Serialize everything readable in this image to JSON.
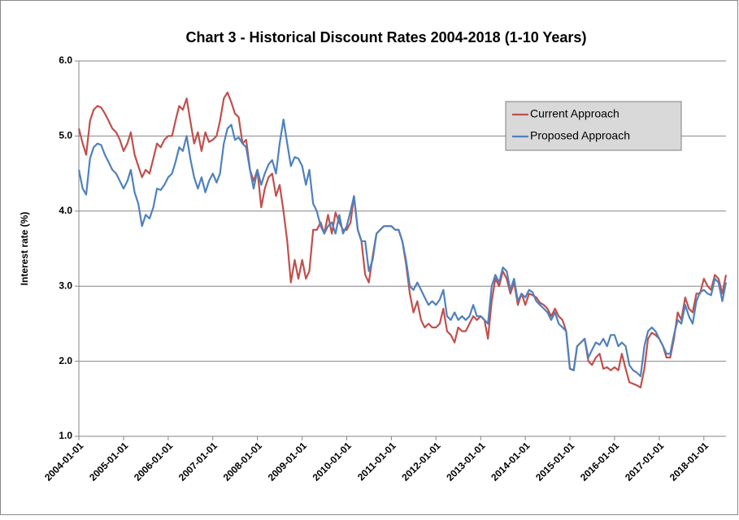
{
  "chart_data": {
    "type": "line",
    "title": "Chart 3 - Historical Discount Rates 2004-2018 (1-10 Years)",
    "y_label": "Interest rate (%)",
    "x": [
      "2004-01-01",
      "2004-02-01",
      "2004-03-01",
      "2004-04-01",
      "2004-05-01",
      "2004-06-01",
      "2004-07-01",
      "2004-08-01",
      "2004-09-01",
      "2004-10-01",
      "2004-11-01",
      "2004-12-01",
      "2005-01-01",
      "2005-02-01",
      "2005-03-01",
      "2005-04-01",
      "2005-05-01",
      "2005-06-01",
      "2005-07-01",
      "2005-08-01",
      "2005-09-01",
      "2005-10-01",
      "2005-11-01",
      "2005-12-01",
      "2006-01-01",
      "2006-02-01",
      "2006-03-01",
      "2006-04-01",
      "2006-05-01",
      "2006-06-01",
      "2006-07-01",
      "2006-08-01",
      "2006-09-01",
      "2006-10-01",
      "2006-11-01",
      "2006-12-01",
      "2007-01-01",
      "2007-02-01",
      "2007-03-01",
      "2007-04-01",
      "2007-05-01",
      "2007-06-01",
      "2007-07-01",
      "2007-08-01",
      "2007-09-01",
      "2007-10-01",
      "2007-11-01",
      "2007-12-01",
      "2008-01-01",
      "2008-02-01",
      "2008-03-01",
      "2008-04-01",
      "2008-05-01",
      "2008-06-01",
      "2008-07-01",
      "2008-08-01",
      "2008-09-01",
      "2008-10-01",
      "2008-11-01",
      "2008-12-01",
      "2009-01-01",
      "2009-02-01",
      "2009-03-01",
      "2009-04-01",
      "2009-05-01",
      "2009-06-01",
      "2009-07-01",
      "2009-08-01",
      "2009-09-01",
      "2009-10-01",
      "2009-11-01",
      "2009-12-01",
      "2010-01-01",
      "2010-02-01",
      "2010-03-01",
      "2010-04-01",
      "2010-05-01",
      "2010-06-01",
      "2010-07-01",
      "2010-08-01",
      "2010-09-01",
      "2010-10-01",
      "2010-11-01",
      "2010-12-01",
      "2011-01-01",
      "2011-02-01",
      "2011-03-01",
      "2011-04-01",
      "2011-05-01",
      "2011-06-01",
      "2011-07-01",
      "2011-08-01",
      "2011-09-01",
      "2011-10-01",
      "2011-11-01",
      "2011-12-01",
      "2012-01-01",
      "2012-02-01",
      "2012-03-01",
      "2012-04-01",
      "2012-05-01",
      "2012-06-01",
      "2012-07-01",
      "2012-08-01",
      "2012-09-01",
      "2012-10-01",
      "2012-11-01",
      "2012-12-01",
      "2013-01-01",
      "2013-02-01",
      "2013-03-01",
      "2013-04-01",
      "2013-05-01",
      "2013-06-01",
      "2013-07-01",
      "2013-08-01",
      "2013-09-01",
      "2013-10-01",
      "2013-11-01",
      "2013-12-01",
      "2014-01-01",
      "2014-02-01",
      "2014-03-01",
      "2014-04-01",
      "2014-05-01",
      "2014-06-01",
      "2014-07-01",
      "2014-08-01",
      "2014-09-01",
      "2014-10-01",
      "2014-11-01",
      "2014-12-01",
      "2015-01-01",
      "2015-02-01",
      "2015-03-01",
      "2015-04-01",
      "2015-05-01",
      "2015-06-01",
      "2015-07-01",
      "2015-08-01",
      "2015-09-01",
      "2015-10-01",
      "2015-11-01",
      "2015-12-01",
      "2016-01-01",
      "2016-02-01",
      "2016-03-01",
      "2016-04-01",
      "2016-05-01",
      "2016-06-01",
      "2016-07-01",
      "2016-08-01",
      "2016-09-01",
      "2016-10-01",
      "2016-11-01",
      "2016-12-01",
      "2017-01-01",
      "2017-02-01",
      "2017-03-01",
      "2017-04-01",
      "2017-05-01",
      "2017-06-01",
      "2017-07-01",
      "2017-08-01",
      "2017-09-01",
      "2017-10-01",
      "2017-11-01",
      "2017-12-01",
      "2018-01-01",
      "2018-02-01",
      "2018-03-01",
      "2018-04-01",
      "2018-05-01",
      "2018-06-01",
      "2018-07-01"
    ],
    "series": [
      {
        "name": "Current Approach",
        "color": "#c0504d",
        "values": [
          5.1,
          4.9,
          4.75,
          5.2,
          5.35,
          5.4,
          5.38,
          5.3,
          5.2,
          5.1,
          5.05,
          4.95,
          4.8,
          4.9,
          5.05,
          4.75,
          4.6,
          4.45,
          4.55,
          4.5,
          4.7,
          4.9,
          4.85,
          4.95,
          5.0,
          5.0,
          5.2,
          5.4,
          5.35,
          5.5,
          5.2,
          4.9,
          5.05,
          4.8,
          5.05,
          4.92,
          4.95,
          5.0,
          5.2,
          5.5,
          5.58,
          5.45,
          5.3,
          5.25,
          4.9,
          4.95,
          4.55,
          4.4,
          4.55,
          4.05,
          4.3,
          4.45,
          4.5,
          4.2,
          4.35,
          4.0,
          3.6,
          3.05,
          3.35,
          3.1,
          3.35,
          3.1,
          3.2,
          3.75,
          3.75,
          3.85,
          3.7,
          3.95,
          3.7,
          3.98,
          3.85,
          3.75,
          3.75,
          3.85,
          4.2,
          3.75,
          3.6,
          3.15,
          3.05,
          3.4,
          3.7,
          3.75,
          3.8,
          3.8,
          3.8,
          3.75,
          3.75,
          3.6,
          3.3,
          2.9,
          2.65,
          2.8,
          2.55,
          2.45,
          2.5,
          2.45,
          2.45,
          2.5,
          2.7,
          2.4,
          2.35,
          2.25,
          2.45,
          2.4,
          2.4,
          2.5,
          2.6,
          2.55,
          2.6,
          2.55,
          2.3,
          2.8,
          3.1,
          3.0,
          3.2,
          3.1,
          2.9,
          3.05,
          2.75,
          2.9,
          2.75,
          2.9,
          2.88,
          2.85,
          2.78,
          2.75,
          2.7,
          2.6,
          2.7,
          2.6,
          2.55,
          2.4,
          1.9,
          1.88,
          2.2,
          2.25,
          2.3,
          2.0,
          1.95,
          2.05,
          2.1,
          1.9,
          1.92,
          1.88,
          1.92,
          1.88,
          2.1,
          1.9,
          1.72,
          1.7,
          1.68,
          1.65,
          1.9,
          2.3,
          2.38,
          2.35,
          2.3,
          2.2,
          2.05,
          2.05,
          2.3,
          2.65,
          2.55,
          2.85,
          2.7,
          2.65,
          2.9,
          2.9,
          3.1,
          3.0,
          2.95,
          3.15,
          3.1,
          2.9,
          3.15
        ]
      },
      {
        "name": "Proposed Approach",
        "color": "#4f81bd",
        "values": [
          4.55,
          4.3,
          4.22,
          4.7,
          4.85,
          4.9,
          4.88,
          4.75,
          4.65,
          4.55,
          4.5,
          4.4,
          4.3,
          4.4,
          4.55,
          4.25,
          4.1,
          3.8,
          3.95,
          3.9,
          4.05,
          4.3,
          4.28,
          4.35,
          4.45,
          4.5,
          4.65,
          4.85,
          4.8,
          5.0,
          4.7,
          4.45,
          4.3,
          4.45,
          4.25,
          4.4,
          4.5,
          4.38,
          4.5,
          4.9,
          5.1,
          5.15,
          4.95,
          4.98,
          4.9,
          4.85,
          4.55,
          4.3,
          4.55,
          4.35,
          4.5,
          4.62,
          4.68,
          4.5,
          4.9,
          5.22,
          4.9,
          4.6,
          4.72,
          4.7,
          4.6,
          4.35,
          4.55,
          4.1,
          4.0,
          3.8,
          3.7,
          3.8,
          3.85,
          3.7,
          3.95,
          3.7,
          3.8,
          4.0,
          4.2,
          3.75,
          3.6,
          3.6,
          3.2,
          3.35,
          3.7,
          3.75,
          3.8,
          3.8,
          3.8,
          3.75,
          3.75,
          3.6,
          3.35,
          3.0,
          2.95,
          3.05,
          2.95,
          2.85,
          2.75,
          2.8,
          2.75,
          2.82,
          2.95,
          2.6,
          2.55,
          2.65,
          2.55,
          2.6,
          2.55,
          2.6,
          2.75,
          2.6,
          2.6,
          2.55,
          2.5,
          3.0,
          3.15,
          3.05,
          3.25,
          3.2,
          2.95,
          3.1,
          2.8,
          2.9,
          2.85,
          2.95,
          2.92,
          2.8,
          2.75,
          2.7,
          2.65,
          2.55,
          2.65,
          2.5,
          2.45,
          2.4,
          1.9,
          1.88,
          2.2,
          2.25,
          2.3,
          2.05,
          2.15,
          2.25,
          2.22,
          2.3,
          2.2,
          2.35,
          2.35,
          2.2,
          2.25,
          2.2,
          1.95,
          1.88,
          1.85,
          1.8,
          2.2,
          2.4,
          2.45,
          2.4,
          2.3,
          2.2,
          2.1,
          2.1,
          2.35,
          2.55,
          2.5,
          2.75,
          2.6,
          2.5,
          2.8,
          2.92,
          2.95,
          2.9,
          2.88,
          3.1,
          3.05,
          2.8,
          3.05
        ]
      }
    ],
    "xlim": [
      "2004-01-01",
      "2018-07-01"
    ],
    "xticks": [
      "2004-01-01",
      "2005-01-01",
      "2006-01-01",
      "2007-01-01",
      "2008-01-01",
      "2009-01-01",
      "2010-01-01",
      "2011-01-01",
      "2012-01-01",
      "2013-01-01",
      "2014-01-01",
      "2015-01-01",
      "2016-01-01",
      "2017-01-01",
      "2018-01-01"
    ],
    "ylim": [
      1,
      6
    ],
    "yticks": [
      {
        "value": 1,
        "label": "1.0"
      },
      {
        "value": 2,
        "label": "2.0"
      },
      {
        "value": 3,
        "label": "3.0"
      },
      {
        "value": 4,
        "label": "4.0"
      },
      {
        "value": 5,
        "label": "5.0"
      },
      {
        "value": 6,
        "label": "6.0"
      }
    ],
    "grid": true,
    "legend": "upper right"
  }
}
